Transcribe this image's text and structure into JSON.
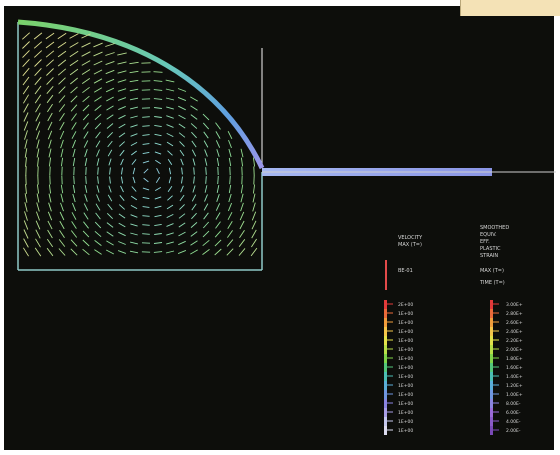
{
  "image": {
    "background": "#0d0e0b",
    "frame_color": "#ffffff",
    "corner_tab_color": "#f4e2b6"
  },
  "velocity_legend": {
    "header_lines": [
      "VELOCITY",
      "MAX (T=)"
    ],
    "reference_label": "BE-01",
    "ticks": [
      "2E+00",
      "1E+00",
      "1E+00",
      "1E+00",
      "1E+00",
      "1E+00",
      "1E+00",
      "1E+00",
      "1E+00",
      "1E+00",
      "1E+00",
      "1E+00",
      "1E+00",
      "1E+00",
      "1E+00"
    ],
    "colors": [
      "#e23a3a",
      "#ea6a3a",
      "#f09d3c",
      "#f4c64a",
      "#e3e24a",
      "#b7df48",
      "#7fd44a",
      "#53c77b",
      "#4bbfb4",
      "#5aaed8",
      "#6f96e2",
      "#8a84e0",
      "#a89ee6",
      "#c5c8ee",
      "#dcdcf0"
    ]
  },
  "strain_legend": {
    "header_lines": [
      "SMOOTHED",
      "EQUIV.",
      "EFF.",
      "PLASTIC",
      "STRAIN",
      "MAX (T=)",
      "TIME (T=)"
    ],
    "ticks": [
      "3.00E+",
      "2.80E+",
      "2.60E+",
      "2.40E+",
      "2.20E+",
      "2.00E+",
      "1.80E+",
      "1.60E+",
      "1.40E+",
      "1.20E+",
      "1.00E+",
      "8.00E-",
      "6.00E-",
      "4.00E-",
      "2.00E-"
    ],
    "colors": [
      "#e23a3a",
      "#ea6a3a",
      "#f09d3c",
      "#f4c64a",
      "#e3e24a",
      "#b7df48",
      "#7fd44a",
      "#53c77b",
      "#4bbfb4",
      "#5aaed8",
      "#6f96e2",
      "#8a84e0",
      "#9a6ad8",
      "#8a5ac8",
      "#7a4ab8"
    ]
  }
}
